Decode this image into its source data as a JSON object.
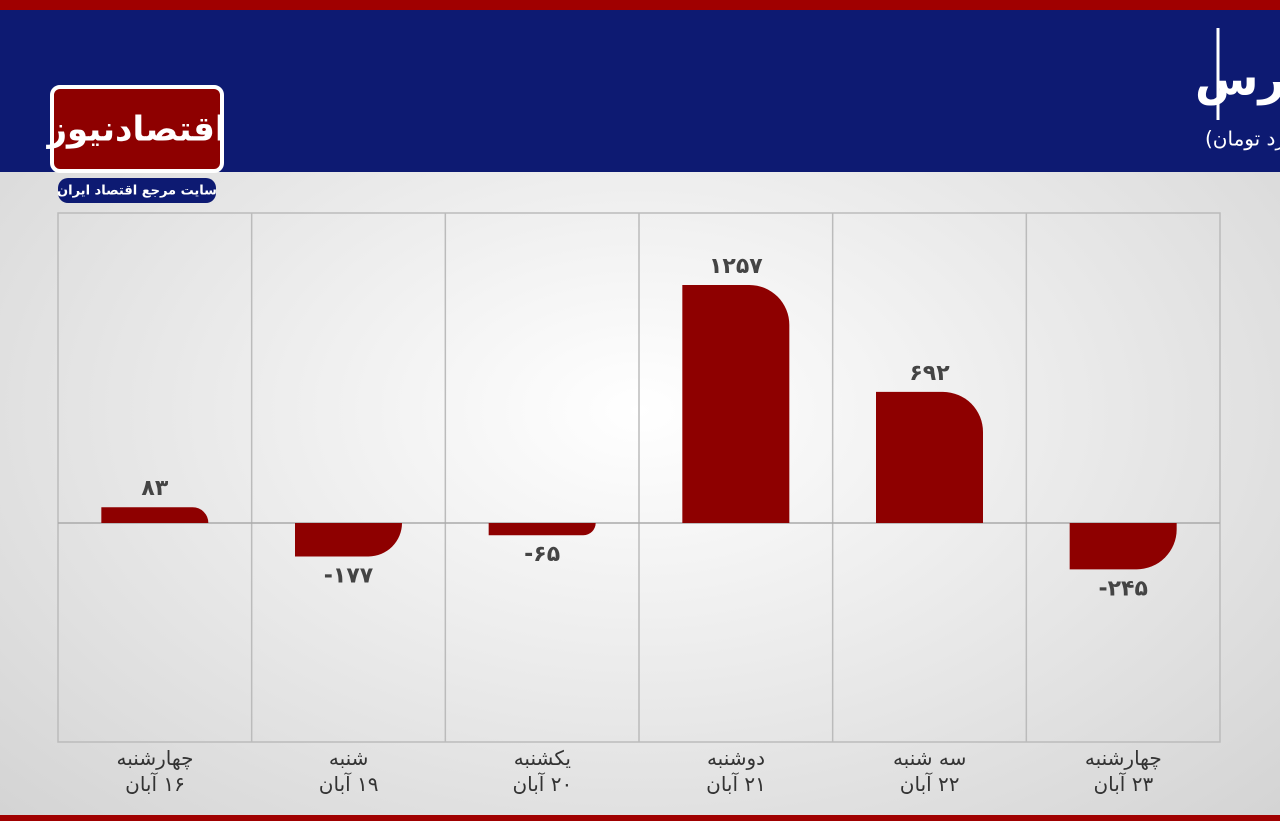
{
  "logo": {
    "name": "اقتصادنیوز",
    "tagline": "سایت مرجع اقتصاد ایران"
  },
  "chart_data": {
    "type": "bar",
    "title": "روند ورود و خروج پول حقیقی در بورس",
    "subtitle": "(واحد:میلیارد تومان)",
    "categories": [
      "چهارشنبه\n۱۶ آبان",
      "شنبه\n۱۹ آبان",
      "یکشنبه\n۲۰ آبان",
      "دوشنبه\n۲۱ آبان",
      "سه شنبه\n۲۲ آبان",
      "چهارشنبه\n۲۳ آبان"
    ],
    "values": [
      83,
      -177,
      -65,
      1257,
      692,
      -245
    ],
    "value_labels": [
      "۸۳",
      "-۱۷۷",
      "-۶۵",
      "۱۲۵۷",
      "۶۹۲",
      "-۲۴۵"
    ],
    "color": "#8e0000",
    "ylim": [
      -1157,
      1637
    ],
    "grid": true
  }
}
